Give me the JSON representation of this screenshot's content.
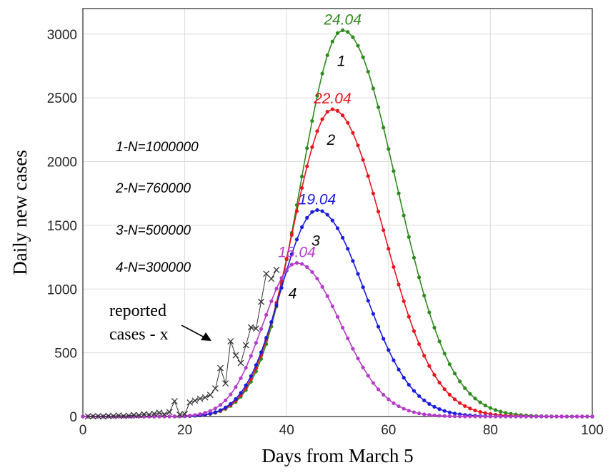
{
  "chart_data": {
    "type": "line",
    "title": "",
    "xlabel": "Days from March 5",
    "ylabel": "Daily new cases",
    "xlim": [
      0,
      100
    ],
    "ylim": [
      0,
      3200
    ],
    "xticks": [
      0,
      20,
      40,
      60,
      80,
      100
    ],
    "yticks": [
      0,
      500,
      1000,
      1500,
      2000,
      2500,
      3000
    ],
    "grid": true,
    "legend_entries": [
      "1-N=1000000",
      "2-N=760000",
      "3-N=500000",
      "4-N=300000"
    ],
    "series": [
      {
        "curve_number": "1",
        "color": "#2e8b1e",
        "peak_label": "24.04",
        "peak_day": 51,
        "peak_value": 3030,
        "sigma_left": 8.2,
        "sigma_right": 10.5
      },
      {
        "curve_number": "2",
        "color": "#e8141e",
        "peak_label": "22.04",
        "peak_day": 49,
        "peak_value": 2410,
        "sigma_left": 7.8,
        "sigma_right": 10.0
      },
      {
        "curve_number": "3",
        "color": "#1a1ae0",
        "peak_label": "19.04",
        "peak_day": 46,
        "peak_value": 1620,
        "sigma_left": 7.2,
        "sigma_right": 9.3
      },
      {
        "curve_number": "4",
        "color": "#b43cc8",
        "peak_label": "15.04",
        "peak_day": 42,
        "peak_value": 1205,
        "sigma_left": 6.6,
        "sigma_right": 8.6
      }
    ],
    "reported_cases": {
      "annotation": [
        "reported",
        "cases - x"
      ],
      "color": "#333333",
      "x": [
        1,
        2,
        3,
        4,
        5,
        6,
        7,
        8,
        9,
        10,
        11,
        12,
        13,
        14,
        15,
        16,
        17,
        18,
        19,
        20,
        21,
        22,
        23,
        24,
        25,
        26,
        27,
        28,
        29,
        30,
        31,
        32,
        33,
        34,
        35,
        36,
        37,
        38
      ],
      "y": [
        1,
        2,
        3,
        0,
        5,
        3,
        8,
        4,
        6,
        12,
        10,
        18,
        15,
        22,
        30,
        18,
        35,
        120,
        15,
        20,
        110,
        125,
        140,
        150,
        170,
        220,
        380,
        260,
        590,
        480,
        420,
        560,
        700,
        690,
        900,
        1120,
        1080,
        1150
      ]
    }
  }
}
